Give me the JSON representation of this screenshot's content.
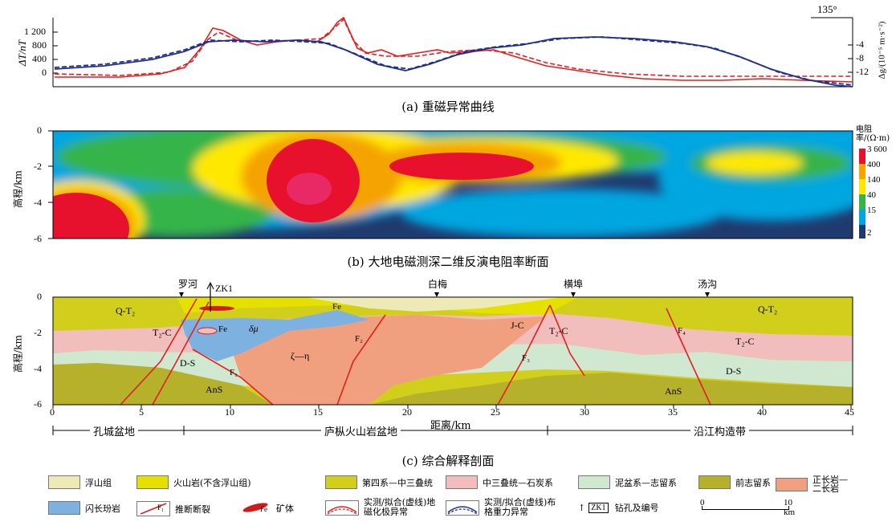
{
  "panel_a": {
    "caption": "(a) 重磁异常曲线",
    "ylabel_left": "ΔT/nT",
    "left_ticks": [
      "1 200",
      "800",
      "400",
      "0"
    ],
    "ylabel_right": "Δg/(10⁻⁵ m·s⁻²)",
    "right_ticks": [
      "-4",
      "-8",
      "-12"
    ],
    "azimuth": "135°"
  },
  "panel_b": {
    "caption": "(b) 大地电磁测深二维反演电阻率断面",
    "ylabel": "高程/km",
    "y_ticks": [
      "0",
      "-2",
      "-4",
      "-6"
    ],
    "colorbar_title": "电阻率/(Ω·m)",
    "colorbar_ticks": [
      "3 600",
      "400",
      "140",
      "40",
      "15",
      "2"
    ],
    "colors": [
      "#e8112d",
      "#f5a300",
      "#ffe800",
      "#34b44a",
      "#00a6e0",
      "#1f3a6e"
    ]
  },
  "panel_c": {
    "caption": "(c) 综合解释剖面",
    "ylabel": "高程/km",
    "y_ticks": [
      "0",
      "-2",
      "-4",
      "-6"
    ],
    "x_ticks": [
      "0",
      "5",
      "10",
      "15",
      "20",
      "25",
      "30",
      "35",
      "40",
      "45"
    ],
    "xlabel": "距离/km",
    "places": [
      "罗河",
      "白梅",
      "横埠",
      "汤沟"
    ],
    "borehole": "ZK1",
    "unit_labels": [
      "Q-T₂",
      "T₂-C",
      "D-S",
      "AnS",
      "Fe",
      "Fe",
      "δμ",
      "ζ—η",
      "J-C",
      "T₂-C",
      "Q-T₂",
      "T₂-C",
      "D-S",
      "AnS"
    ],
    "faults": [
      "F₁",
      "F₂",
      "F₃",
      "F₄"
    ],
    "basins": [
      "孔城盆地",
      "庐枞火山岩盆地",
      "沿江构造带"
    ]
  },
  "legend": {
    "items": [
      {
        "label": "浮山组",
        "color": "#eeeab8"
      },
      {
        "label": "火山岩(不含浮山组)",
        "color": "#e6e000"
      },
      {
        "label": "第四系—中三叠统",
        "color": "#d2cf1c"
      },
      {
        "label": "中三叠统—石炭系",
        "color": "#f2bdbd"
      },
      {
        "label": "泥盆系—志留系",
        "color": "#cfe8cf"
      },
      {
        "label": "前志留系",
        "color": "#b6b12a"
      },
      {
        "label": "正长岩—二长岩",
        "color": "#f0a07e"
      },
      {
        "label": "闪长玢岩",
        "color": "#7db2e0"
      },
      {
        "label": "推断断裂"
      },
      {
        "label": "矿体"
      },
      {
        "label": "实测/拟合(虚线)地磁化极异常"
      },
      {
        "label": "实测/拟合(虚线)布格重力异常"
      },
      {
        "label": "钻孔及编号"
      }
    ],
    "fault_symbol": "F₁",
    "ore_symbol": "Fe",
    "borehole_symbol": "ZK1",
    "scale_left": "0",
    "scale_right": "10 km"
  }
}
